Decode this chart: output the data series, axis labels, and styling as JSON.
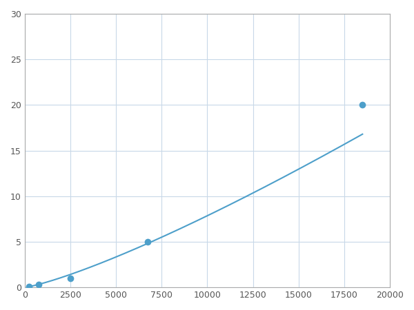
{
  "x_points": [
    250,
    750,
    2500,
    6750,
    18500
  ],
  "y_points": [
    0.1,
    0.3,
    1.0,
    5.0,
    20.0
  ],
  "line_color": "#4d9fca",
  "marker_color": "#4d9fca",
  "marker_size": 7,
  "line_width": 1.5,
  "xlim": [
    0,
    20000
  ],
  "ylim": [
    0,
    30
  ],
  "xticks": [
    0,
    2500,
    5000,
    7500,
    10000,
    12500,
    15000,
    17500,
    20000
  ],
  "yticks": [
    0,
    5,
    10,
    15,
    20,
    25,
    30
  ],
  "grid_color": "#c8d8e8",
  "background_color": "#ffffff",
  "spine_color": "#aaaaaa",
  "tick_label_color": "#555555",
  "tick_label_size": 9
}
